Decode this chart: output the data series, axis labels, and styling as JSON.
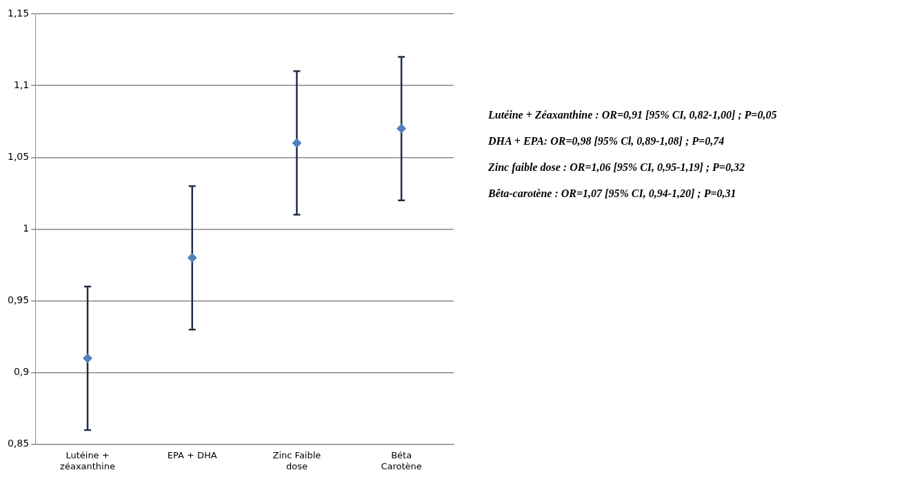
{
  "chart_data": {
    "type": "scatter",
    "categories": [
      "Lutéine + zéaxanthine",
      "EPA + DHA",
      "Zinc Faible dose",
      "Béta Carotène"
    ],
    "series": [
      {
        "color": "#4f81bd",
        "values": [
          0.91,
          0.98,
          1.06,
          1.07
        ],
        "errors": [
          [
            0.86,
            0.96
          ],
          [
            0.93,
            1.03
          ],
          [
            1.01,
            1.11
          ],
          [
            1.02,
            1.12
          ]
        ]
      }
    ],
    "ylim": [
      0.85,
      1.15
    ],
    "yticks": [
      {
        "value": 0.85,
        "label": "0,85"
      },
      {
        "value": 0.9,
        "label": "0,9"
      },
      {
        "value": 0.95,
        "label": "0,95"
      },
      1,
      {
        "value": 1.05,
        "label": "1,05"
      },
      {
        "value": 1.1,
        "label": "1,1"
      },
      {
        "value": 1.15,
        "label": "1,15"
      }
    ],
    "grid": "y",
    "legend": false,
    "marker": "diamond",
    "annotations": [
      "Lutéine + Zéaxanthine : OR=0,91 [95% CI, 0,82-1,00] ; P=0,05",
      "DHA + EPA: OR=0,98 [95% Cl, 0,89-1,08] ; P=0,74",
      "Zinc faible dose : OR=1,06 [95% CI, 0,95-1,19] ; P=0,32",
      "Bêta-carotène : OR=1,07 [95% CI, 0,94-1,20] ; P=0,31"
    ]
  }
}
